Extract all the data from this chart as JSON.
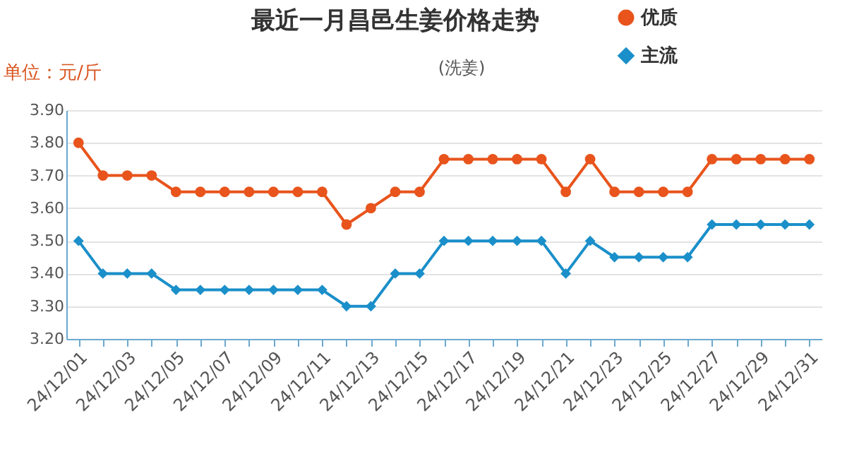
{
  "chart_data": {
    "type": "line",
    "title": "最近一月昌邑生姜价格走势",
    "subtitle": "(洗姜)",
    "ylabel": "单位：元/斤",
    "categories": [
      "24/12/01",
      null,
      "24/12/03",
      null,
      "24/12/05",
      null,
      "24/12/07",
      null,
      "24/12/09",
      null,
      "24/12/11",
      null,
      "24/12/13",
      null,
      "24/12/15",
      null,
      "24/12/17",
      null,
      "24/12/19",
      null,
      "24/12/21",
      null,
      "24/12/23",
      null,
      "24/12/25",
      null,
      "24/12/27",
      null,
      "24/12/29",
      null,
      "24/12/31"
    ],
    "series": [
      {
        "name": "优质",
        "color": "#e8541c",
        "marker": "circle",
        "values": [
          3.8,
          3.7,
          3.7,
          3.7,
          3.65,
          3.65,
          3.65,
          3.65,
          3.65,
          3.65,
          3.65,
          3.55,
          3.6,
          3.65,
          3.65,
          3.75,
          3.75,
          3.75,
          3.75,
          3.75,
          3.65,
          3.75,
          3.65,
          3.65,
          3.65,
          3.65,
          3.75,
          3.75,
          3.75,
          3.75,
          3.75
        ]
      },
      {
        "name": "主流",
        "color": "#1a8fc9",
        "marker": "diamond",
        "values": [
          3.5,
          3.4,
          3.4,
          3.4,
          3.35,
          3.35,
          3.35,
          3.35,
          3.35,
          3.35,
          3.35,
          3.3,
          3.3,
          3.4,
          3.4,
          3.5,
          3.5,
          3.5,
          3.5,
          3.5,
          3.4,
          3.5,
          3.45,
          3.45,
          3.45,
          3.45,
          3.55,
          3.55,
          3.55,
          3.55,
          3.55
        ]
      }
    ],
    "ylim": [
      3.2,
      3.9
    ],
    "yticks": [
      {
        "value": 3.2,
        "label": "3.20"
      },
      {
        "value": 3.3,
        "label": "3.30"
      },
      {
        "value": 3.4,
        "label": "3.40"
      },
      {
        "value": 3.5,
        "label": "3.50"
      },
      {
        "value": 3.6,
        "label": "3.60"
      },
      {
        "value": 3.7,
        "label": "3.70"
      },
      {
        "value": 3.8,
        "label": "3.80"
      },
      {
        "value": 3.9,
        "label": "3.90"
      }
    ],
    "grid": "y",
    "legend": "top right",
    "line_style": "solid"
  }
}
